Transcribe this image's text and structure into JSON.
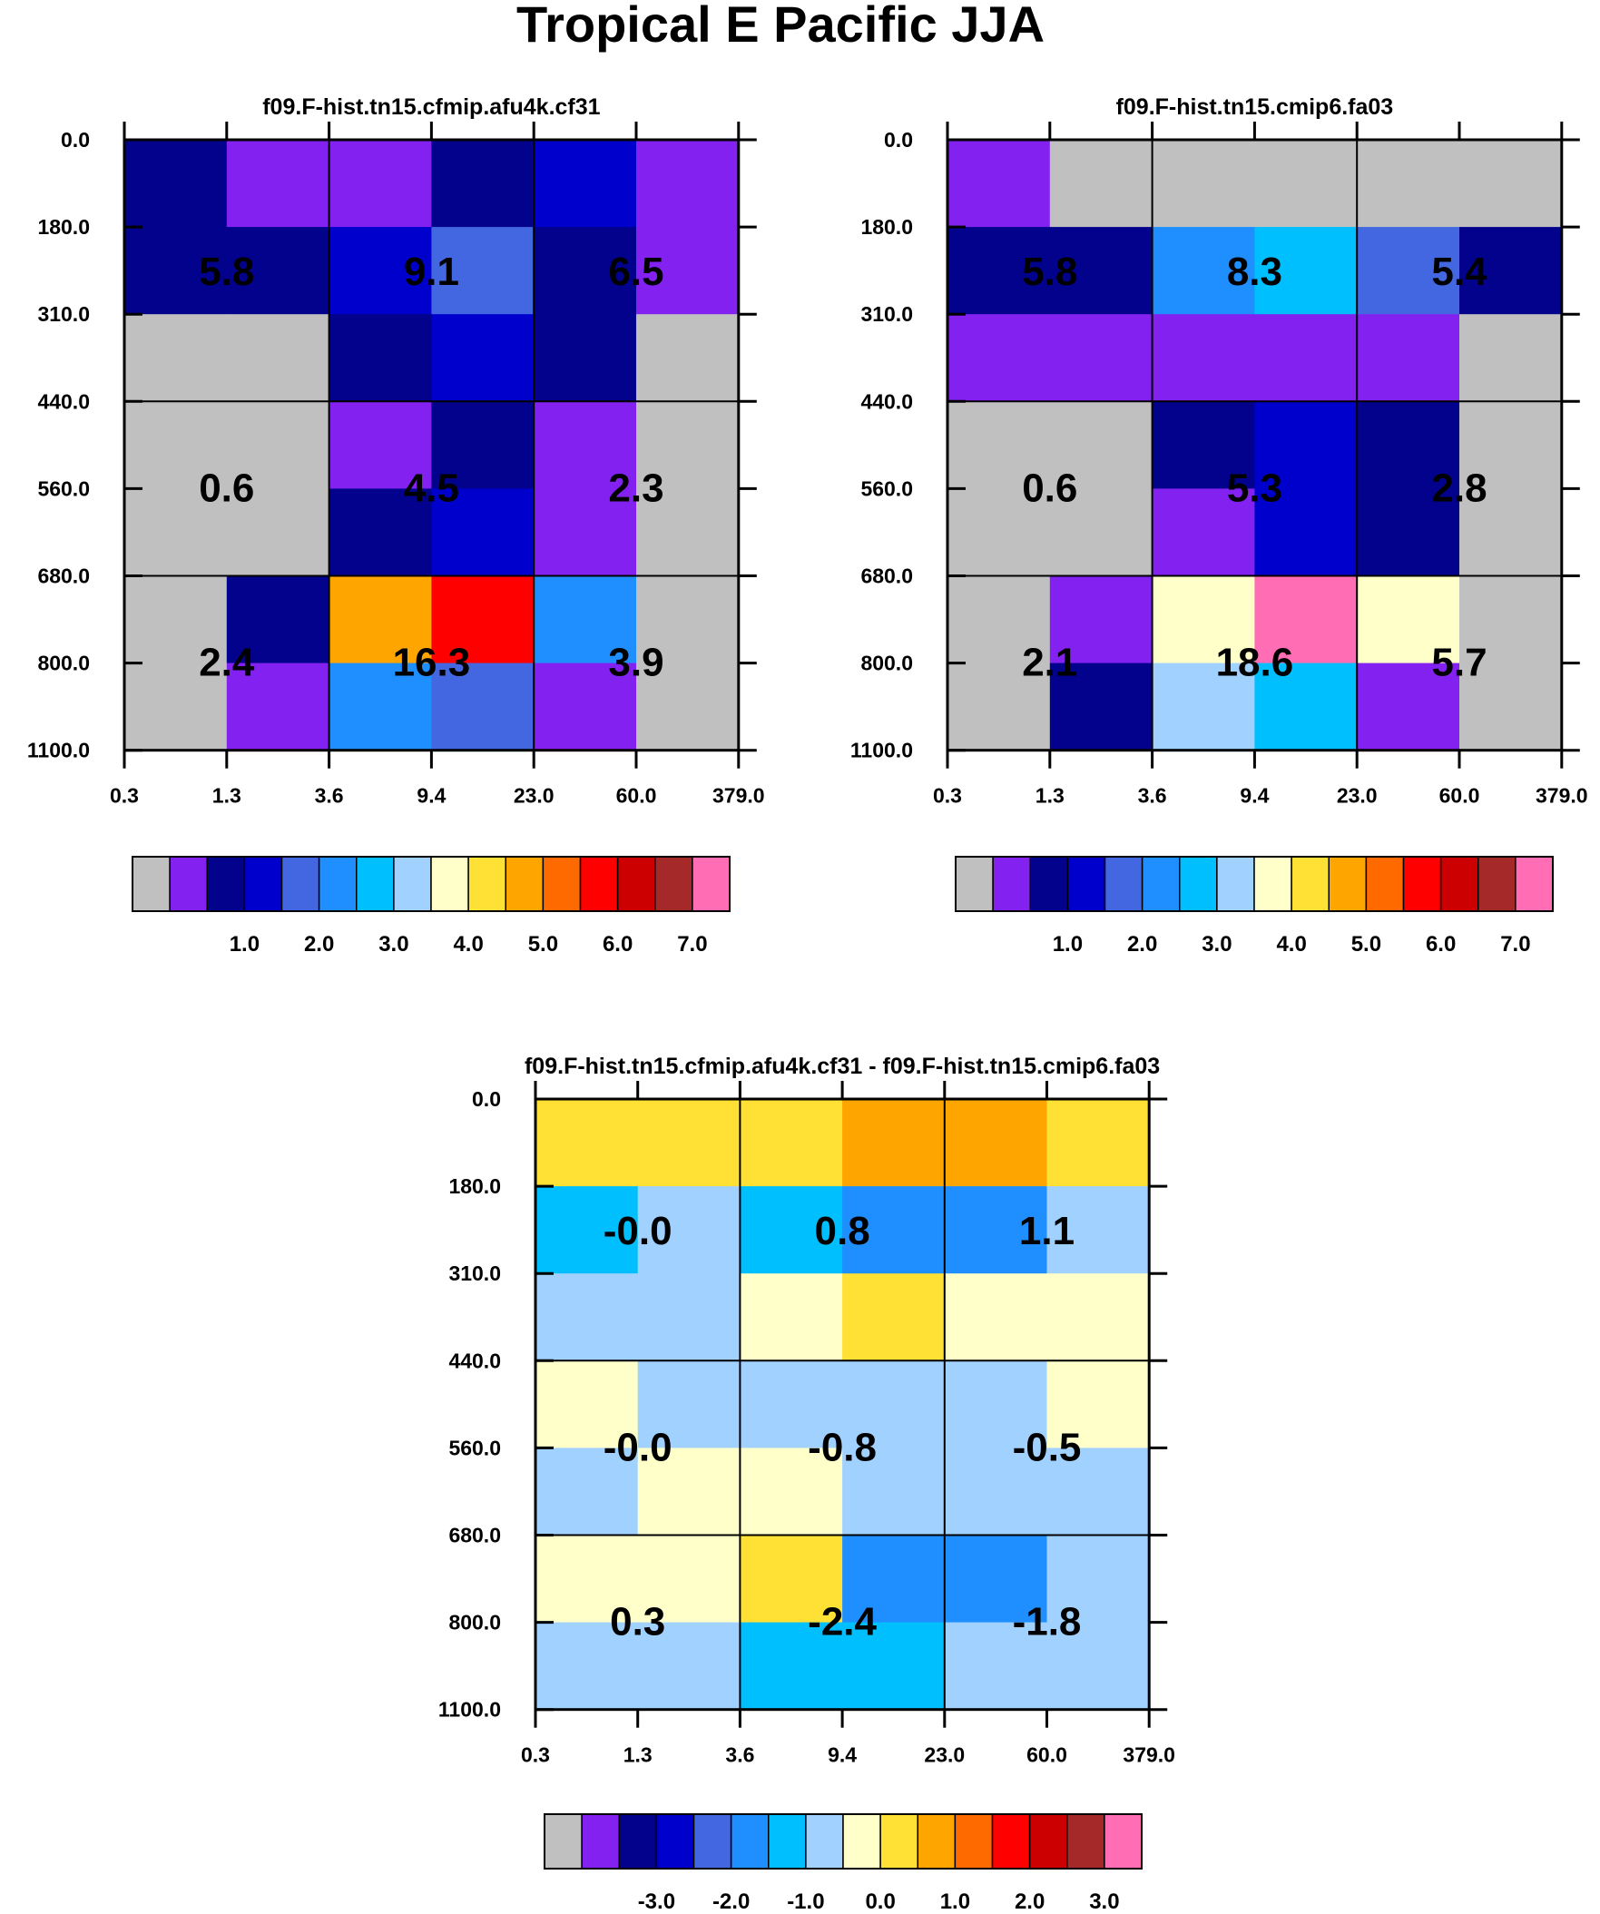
{
  "title": "Tropical E Pacific JJA",
  "chart_data": [
    {
      "type": "heatmap",
      "title": "f09.F-hist.tn15.cfmip.afu4k.cf31",
      "x_ticks": [
        "0.3",
        "1.3",
        "3.6",
        "9.4",
        "23.0",
        "60.0",
        "379.0"
      ],
      "y_ticks": [
        "0.0",
        "180.0",
        "310.0",
        "440.0",
        "560.0",
        "680.0",
        "800.0",
        "1100.0"
      ],
      "cells": [
        [
          "c2",
          "c1",
          "c1",
          "c2",
          "c3",
          "c1"
        ],
        [
          "c2",
          "c2",
          "c3",
          "c4",
          "c2",
          "c1"
        ],
        [
          "c0",
          "c0",
          "c2",
          "c3",
          "c2",
          "c0"
        ],
        [
          "c0",
          "c0",
          "c1",
          "c2",
          "c1",
          "c0"
        ],
        [
          "c0",
          "c0",
          "c2",
          "c3",
          "c1",
          "c0"
        ],
        [
          "c0",
          "c2",
          "c10",
          "c12",
          "c5",
          "c0"
        ],
        [
          "c0",
          "c1",
          "c5",
          "c4",
          "c1",
          "c0"
        ]
      ],
      "block_values": [
        [
          "5.8",
          "9.1",
          "6.5"
        ],
        [
          "0.6",
          "4.5",
          "2.3"
        ],
        [
          "2.4",
          "16.3",
          "3.9"
        ]
      ],
      "colorbar_labels": [
        "1.0",
        "2.0",
        "3.0",
        "4.0",
        "5.0",
        "6.0",
        "7.0"
      ]
    },
    {
      "type": "heatmap",
      "title": "f09.F-hist.tn15.cmip6.fa03",
      "x_ticks": [
        "0.3",
        "1.3",
        "3.6",
        "9.4",
        "23.0",
        "60.0",
        "379.0"
      ],
      "y_ticks": [
        "0.0",
        "180.0",
        "310.0",
        "440.0",
        "560.0",
        "680.0",
        "800.0",
        "1100.0"
      ],
      "cells": [
        [
          "c1",
          "c0",
          "c0",
          "c0",
          "c0",
          "c0"
        ],
        [
          "c2",
          "c2",
          "c5",
          "c6",
          "c4",
          "c2"
        ],
        [
          "c1",
          "c1",
          "c1",
          "c1",
          "c1",
          "c0"
        ],
        [
          "c0",
          "c0",
          "c2",
          "c3",
          "c2",
          "c0"
        ],
        [
          "c0",
          "c0",
          "c1",
          "c3",
          "c2",
          "c0"
        ],
        [
          "c0",
          "c1",
          "c8",
          "c15",
          "c8",
          "c0"
        ],
        [
          "c0",
          "c2",
          "c7",
          "c6",
          "c1",
          "c0"
        ]
      ],
      "block_values": [
        [
          "5.8",
          "8.3",
          "5.4"
        ],
        [
          "0.6",
          "5.3",
          "2.8"
        ],
        [
          "2.1",
          "18.6",
          "5.7"
        ]
      ],
      "colorbar_labels": [
        "1.0",
        "2.0",
        "3.0",
        "4.0",
        "5.0",
        "6.0",
        "7.0"
      ]
    },
    {
      "type": "heatmap",
      "title": "f09.F-hist.tn15.cfmip.afu4k.cf31 - f09.F-hist.tn15.cmip6.fa03",
      "x_ticks": [
        "0.3",
        "1.3",
        "3.6",
        "9.4",
        "23.0",
        "60.0",
        "379.0"
      ],
      "y_ticks": [
        "0.0",
        "180.0",
        "310.0",
        "440.0",
        "560.0",
        "680.0",
        "800.0",
        "1100.0"
      ],
      "cells": [
        [
          "c9",
          "c9",
          "c9",
          "c10",
          "c10",
          "c9"
        ],
        [
          "c6",
          "c7",
          "c6",
          "c5",
          "c5",
          "c7"
        ],
        [
          "c7",
          "c7",
          "c8",
          "c9",
          "c8",
          "c8"
        ],
        [
          "c8",
          "c7",
          "c7",
          "c7",
          "c7",
          "c8"
        ],
        [
          "c7",
          "c8",
          "c8",
          "c7",
          "c7",
          "c7"
        ],
        [
          "c8",
          "c8",
          "c9",
          "c5",
          "c5",
          "c7"
        ],
        [
          "c7",
          "c7",
          "c6",
          "c6",
          "c7",
          "c7"
        ]
      ],
      "block_values": [
        [
          "-0.0",
          "0.8",
          "1.1"
        ],
        [
          "-0.0",
          "-0.8",
          "-0.5"
        ],
        [
          "0.3",
          "-2.4",
          "-1.8"
        ]
      ],
      "colorbar_labels": [
        "-3.0",
        "-2.0",
        "-1.0",
        "0.0",
        "1.0",
        "2.0",
        "3.0"
      ]
    }
  ],
  "palette": {
    "c0": "#c0c0c0",
    "c1": "#8322f0",
    "c2": "#02028c",
    "c3": "#0000cd",
    "c4": "#4267e0",
    "c5": "#1f8fff",
    "c6": "#00bfff",
    "c7": "#a1d1ff",
    "c8": "#ffffca",
    "c9": "#ffe135",
    "c10": "#ffa500",
    "c11": "#ff6a00",
    "c12": "#ff0000",
    "c13": "#cc0000",
    "c14": "#a52929",
    "c15": "#ff6eb5"
  }
}
